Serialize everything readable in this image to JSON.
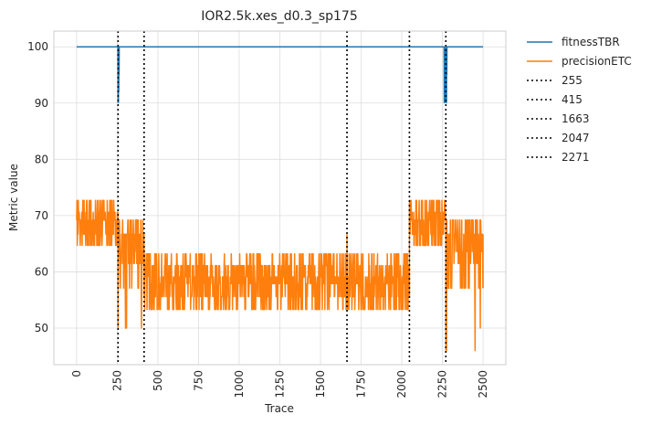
{
  "chart_data": {
    "type": "line",
    "title": "IOR2.5k.xes_d0.3_sp175",
    "xlabel": "Trace",
    "ylabel": "Metric value",
    "xlim": [
      -140,
      2640
    ],
    "ylim": [
      43.5,
      102.8
    ],
    "x_ticks": [
      0,
      250,
      500,
      750,
      1000,
      1250,
      1500,
      1750,
      2000,
      2250,
      2500
    ],
    "y_ticks": [
      50,
      60,
      70,
      80,
      90,
      100
    ],
    "grid": true,
    "legend_position": "outside-right",
    "series": [
      {
        "name": "fitnessTBR",
        "color": "#1f77b4",
        "x": [
          0,
          254,
          255,
          256,
          257,
          258,
          259,
          260,
          261,
          262,
          263,
          2260,
          2261,
          2262,
          2263,
          2264,
          2265,
          2266,
          2267,
          2268,
          2269,
          2270,
          2271,
          2272,
          2273,
          2274,
          2275,
          2276,
          2277,
          2278,
          2279,
          2500
        ],
        "y": [
          100,
          100,
          90,
          100,
          90,
          100,
          92,
          100,
          95,
          100,
          100,
          100,
          90,
          100,
          90,
          100,
          90,
          100,
          90,
          100,
          90,
          100,
          90,
          100,
          90,
          100,
          90,
          100,
          95,
          100,
          100,
          100
        ]
      },
      {
        "name": "precisionETC",
        "color": "#ff7f0e",
        "x": [
          0,
          255,
          415,
          1663,
          2047,
          2271,
          2500
        ],
        "y": [
          72.7,
          50,
          57.1,
          53.3,
          72.7,
          46,
          57.1
        ],
        "segments": [
          {
            "x_start": 0,
            "x_end": 255,
            "values": [
              66.7,
              72.7,
              70.6,
              69.2,
              64.7
            ],
            "drops": [
              63.6,
              64.7
            ]
          },
          {
            "x_start": 255,
            "x_end": 415,
            "values": [
              57.1,
              66.7,
              69.2,
              61.5,
              63.6
            ],
            "drops": [
              50,
              57.1
            ]
          },
          {
            "x_start": 415,
            "x_end": 2047,
            "values": [
              53.3,
              63.2,
              55.6,
              57.9,
              61.1,
              59.1
            ],
            "drops": [
              53.3
            ]
          },
          {
            "x_start": 2047,
            "x_end": 2271,
            "values": [
              66.7,
              72.7,
              70.6,
              69.2,
              64.7
            ],
            "drops": [
              64.7
            ]
          },
          {
            "x_start": 2271,
            "x_end": 2500,
            "values": [
              57.1,
              66.7,
              69.2,
              61.5,
              63.6
            ],
            "drops": [
              46,
              50
            ]
          }
        ]
      }
    ],
    "vlines": [
      {
        "name": "255",
        "x": 255
      },
      {
        "name": "415",
        "x": 415
      },
      {
        "name": "1663",
        "x": 1663
      },
      {
        "name": "2047",
        "x": 2047
      },
      {
        "name": "2271",
        "x": 2271
      }
    ]
  }
}
